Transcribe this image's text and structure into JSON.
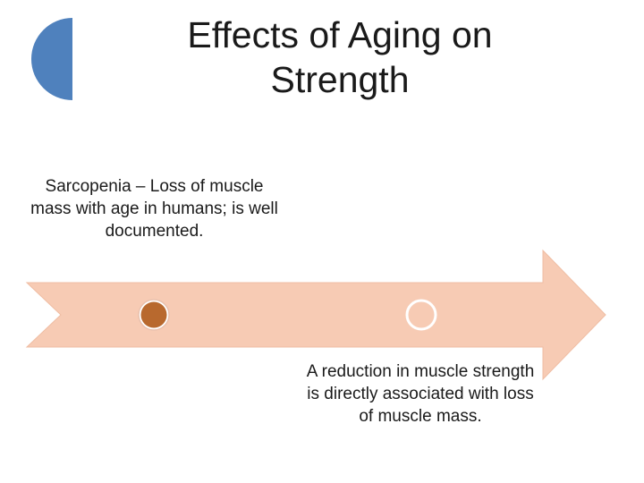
{
  "slide": {
    "title": "Effects of Aging on Strength"
  },
  "timeline": {
    "events": [
      {
        "text": "Sarcopenia – Loss of muscle mass with age in humans; is well documented.",
        "marker": "filled-circle"
      },
      {
        "text": "A reduction in muscle strength is directly associated with loss of muscle mass.",
        "marker": "hollow-circle"
      }
    ]
  },
  "colors": {
    "arrow_fill": "#f7cbb4",
    "arrow_outline": "#e8b89f",
    "marker_filled": "#b8692e",
    "marker_ring": "#ffffff",
    "accent_half_circle": "#4f81bd",
    "text": "#1a1a1a"
  }
}
